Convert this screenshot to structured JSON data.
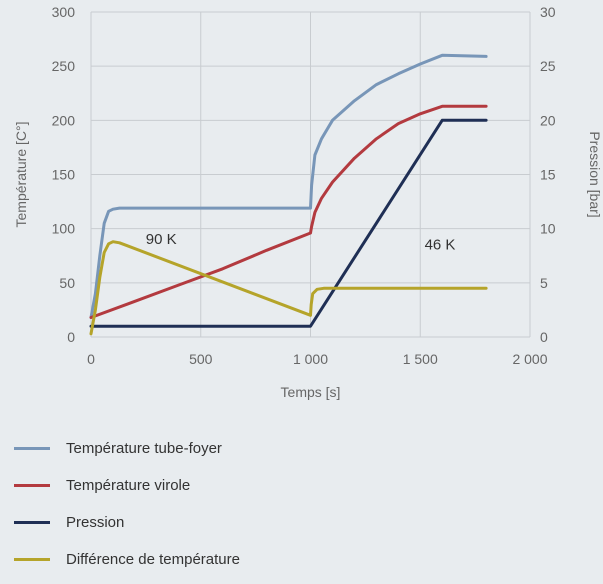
{
  "chart_data": {
    "type": "line",
    "xlabel": "Temps [s]",
    "ylabel": "Température [C°]",
    "y2label": "Pression [bar]",
    "xlim": [
      0,
      2000
    ],
    "ylim": [
      0,
      300
    ],
    "y2lim": [
      0,
      30
    ],
    "grid": true,
    "xticks": [
      "0",
      "500",
      "1 000",
      "1 500",
      "2 000"
    ],
    "yticks": [
      "0",
      "50",
      "100",
      "150",
      "200",
      "250",
      "300"
    ],
    "y2ticks": [
      "0",
      "5",
      "10",
      "15",
      "20",
      "25",
      "30"
    ],
    "legend_position": "bottom",
    "annotations": [
      {
        "text": "90 K",
        "x": 320,
        "y": 86
      },
      {
        "text": "46 K",
        "x": 1590,
        "y": 81
      }
    ],
    "series": [
      {
        "name": "Température tube-foyer",
        "color": "#7896b8",
        "axis": "left",
        "x": [
          0,
          20,
          40,
          60,
          80,
          100,
          130,
          200,
          500,
          1000,
          1005,
          1020,
          1050,
          1100,
          1200,
          1300,
          1400,
          1500,
          1600,
          1800
        ],
        "y": [
          18,
          40,
          75,
          105,
          116,
          118,
          119,
          119,
          119,
          119,
          140,
          168,
          183,
          200,
          218,
          233,
          243,
          252,
          260,
          259
        ]
      },
      {
        "name": "Température virole",
        "color": "#b33a3f",
        "axis": "left",
        "x": [
          0,
          200,
          400,
          600,
          800,
          1000,
          1005,
          1020,
          1050,
          1100,
          1200,
          1300,
          1400,
          1500,
          1600,
          1800
        ],
        "y": [
          18,
          33,
          48,
          63,
          80,
          96,
          102,
          115,
          128,
          143,
          165,
          183,
          197,
          206,
          213,
          213
        ]
      },
      {
        "name": "Pression",
        "color": "#1f2f55",
        "axis": "right",
        "x": [
          0,
          1000,
          1600,
          1800
        ],
        "y": [
          1,
          1,
          20,
          20
        ]
      },
      {
        "name": "Différence de température",
        "color": "#b5a42a",
        "axis": "left",
        "x": [
          0,
          20,
          40,
          60,
          80,
          100,
          130,
          1000,
          1003,
          1010,
          1030,
          1060,
          1100,
          1800
        ],
        "y": [
          3,
          25,
          55,
          78,
          86,
          88,
          87,
          20,
          30,
          40,
          44,
          45,
          45,
          45
        ]
      }
    ]
  }
}
